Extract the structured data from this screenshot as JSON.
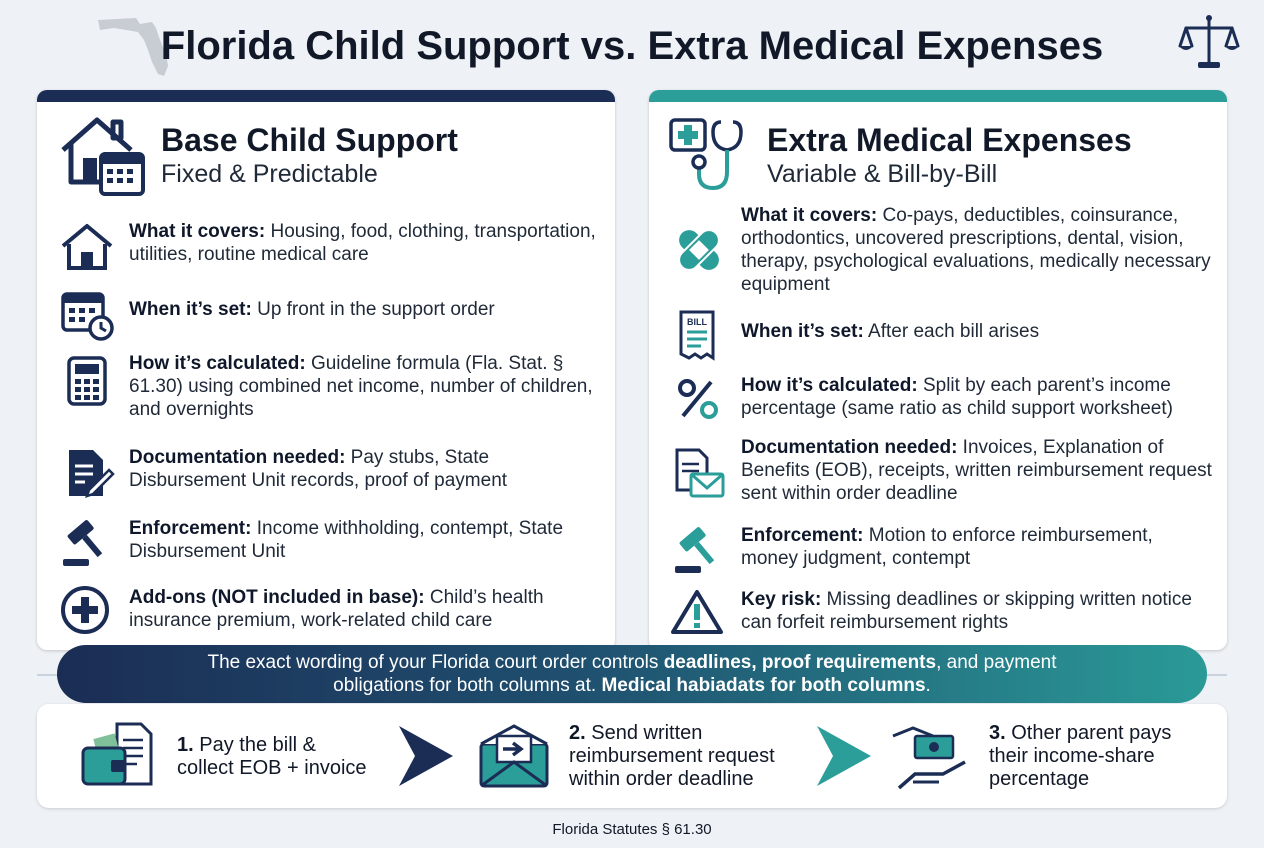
{
  "header": {
    "title": "Florida Child Support vs. Extra Medical Expenses",
    "left_icon": "florida-map-icon",
    "right_icon": "scales-of-justice-icon"
  },
  "colors": {
    "navy": "#1b2d55",
    "teal": "#2b9e9a"
  },
  "left_card": {
    "title": "Base Child Support",
    "subtitle": "Fixed & Predictable",
    "rows": [
      {
        "icon": "house-icon",
        "label": "What it covers:",
        "text": " Housing, food, clothing, transportation, utilities, routine medical care"
      },
      {
        "icon": "calendar-clock-icon",
        "label": "When it’s set:",
        "text": " Up front in the support order"
      },
      {
        "icon": "calculator-icon",
        "label": "How it’s calculated:",
        "text": " Guideline formula (Fla. Stat. § 61.30) using combined net income, number of children, and overnights"
      },
      {
        "icon": "document-pen-icon",
        "label": "Documentation needed:",
        "text": " Pay stubs, State Disbursement Unit records, proof of payment"
      },
      {
        "icon": "gavel-icon",
        "label": "Enforcement:",
        "text": " Income withholding, contempt, State Disbursement Unit"
      },
      {
        "icon": "plus-circle-icon",
        "label": "Add-ons (NOT included in base):",
        "text": " Child’s health insurance premium, work-related child care"
      }
    ]
  },
  "right_card": {
    "title": "Extra Medical Expenses",
    "subtitle": "Variable & Bill-by-Bill",
    "rows": [
      {
        "icon": "bandage-icon",
        "label": "What it covers:",
        "text": " Co-pays, deductibles, coinsurance, orthodontics, uncovered prescriptions, dental, vision, therapy, psychological evaluations, medically necessary equipment"
      },
      {
        "icon": "bill-receipt-icon",
        "bill_text": "BILL",
        "label": "When it’s set:",
        "text": " After each bill arises"
      },
      {
        "icon": "percent-icon",
        "label": "How it’s calculated:",
        "text": " Split by each parent’s income percentage (same ratio as child support worksheet)"
      },
      {
        "icon": "document-envelope-icon",
        "label": "Documentation needed:",
        "text": " Invoices, Explanation of Benefits (EOB), receipts, written reimbursement request sent within order deadline"
      },
      {
        "icon": "gavel-icon",
        "label": "Enforcement:",
        "text": " Motion to enforce reimbursement, money judgment, contempt"
      },
      {
        "icon": "warning-triangle-icon",
        "label": "Key risk:",
        "text": " Missing deadlines or skipping written notice can forfeit reimbursement rights"
      }
    ]
  },
  "banner": {
    "line1_a": "The exact wording of your Florida court order controls ",
    "line1_b": "deadlines, proof requirements",
    "line1_c": ", and payment",
    "line2_a": "obligations for both columns at. ",
    "line2_b": "Medical habiadats for both columns",
    "line2_c": "."
  },
  "steps": [
    {
      "icon": "wallet-invoice-icon",
      "num": "1.",
      "text_l1": " Pay the bill &",
      "text_l2": "collect EOB + invoice"
    },
    {
      "icon": "envelope-arrow-icon",
      "num": "2.",
      "text_l1": " Send written",
      "text_l2": "reimbursement request",
      "text_l3": "within order deadline"
    },
    {
      "icon": "money-hand-icon",
      "num": "3.",
      "text_l1": " Other parent pays",
      "text_l2": "their income-share",
      "text_l3": "percentage"
    }
  ],
  "footer": "Florida Statutes § 61.30"
}
